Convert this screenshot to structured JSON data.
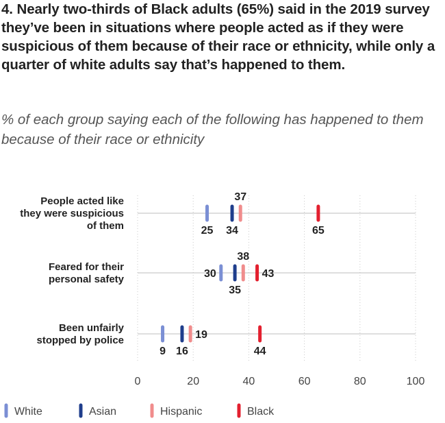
{
  "title": "4. Nearly two-thirds of Black adults (65%) said in the 2019 survey they’ve been in situations where people acted as if they were suspicious of them because of their race or ethnicity, while only a quarter of white adults say that’s happened to them.",
  "subtitle": "% of each group saying each of the following has happened to them because of their race or ethnicity",
  "chart_data": {
    "type": "dot",
    "categories": [
      [
        "People acted like",
        "they were suspicious",
        "of them"
      ],
      [
        "Feared for their",
        "personal safety"
      ],
      [
        "Been unfairly",
        "stopped by police"
      ]
    ],
    "series": [
      {
        "name": "White",
        "color": "#7b8fd4",
        "values": [
          25,
          30,
          9
        ]
      },
      {
        "name": "Asian",
        "color": "#1f3e8c",
        "values": [
          34,
          35,
          16
        ]
      },
      {
        "name": "Hispanic",
        "color": "#f08c8c",
        "values": [
          37,
          38,
          19
        ]
      },
      {
        "name": "Black",
        "color": "#e3202f",
        "values": [
          65,
          43,
          44
        ]
      }
    ],
    "xlim": [
      0,
      100
    ],
    "xticks": [
      "0",
      "20",
      "40",
      "60",
      "80",
      "100"
    ],
    "grid": "vertical dotted",
    "legend": "bottom-left"
  }
}
